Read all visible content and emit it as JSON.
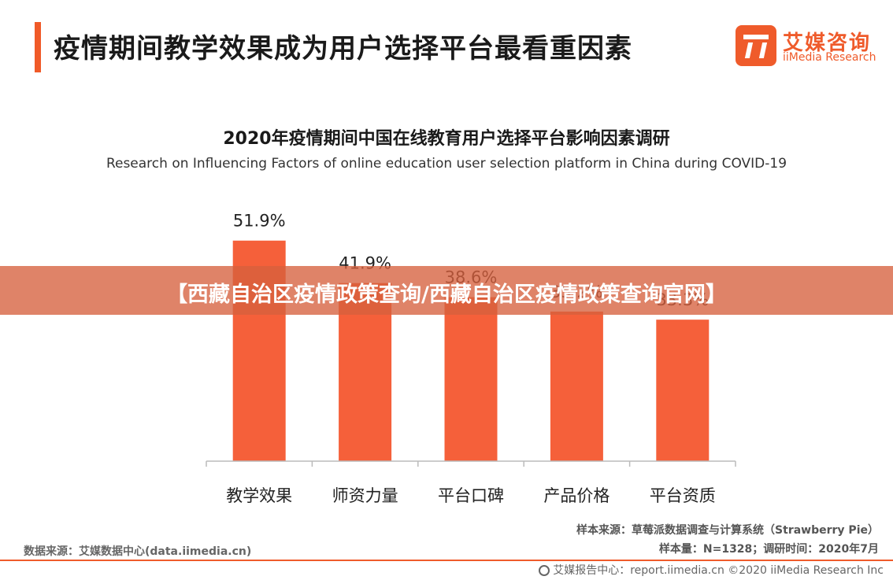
{
  "page": {
    "title": "疫情期间教学效果成为用户选择平台最看重因素"
  },
  "logo": {
    "name_cn": "艾媒咨询",
    "name_en": "iiMedia Research",
    "brand_color": "#ef5b2b"
  },
  "overlay": {
    "text": "【西藏自治区疫情政策查询/西藏自治区疫情政策查询官网】"
  },
  "chart_data": {
    "type": "bar",
    "title": "2020年疫情期间中国在线教育用户选择平台影响因素调研",
    "subtitle": "Research on Influencing Factors of online education user selection platform in China during COVID-19",
    "categories": [
      "教学效果",
      "师资力量",
      "平台口碑",
      "产品价格",
      "平台资质"
    ],
    "values": [
      51.9,
      41.9,
      38.6,
      35.2,
      33.3
    ],
    "value_labels": [
      "51.9%",
      "41.9%",
      "38.6%",
      "35.2%",
      "33.3%"
    ],
    "ylim": [
      0,
      60
    ],
    "grid": false,
    "legend": "none",
    "bar_color": "#f5603a"
  },
  "sources": {
    "line1": "样本来源：草莓派数据调查与计算系统（Strawberry Pie）",
    "line2": "样本量：N=1328；调研时间：2020年7月",
    "data_source": "数据来源：艾媒数据中心(data.iimedia.cn)"
  },
  "footer": {
    "text": "艾媒报告中心：report.iimedia.cn   ©2020  iiMedia Research  Inc"
  }
}
